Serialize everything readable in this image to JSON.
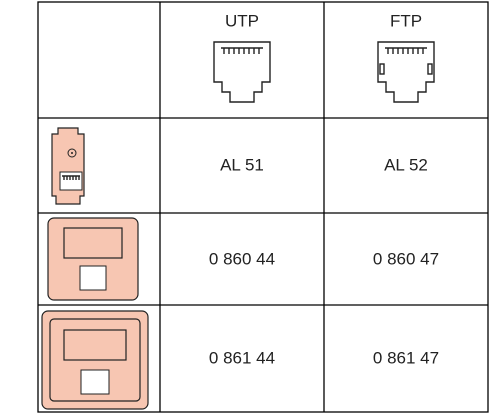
{
  "table": {
    "header": [
      "UTP",
      "FTP"
    ],
    "rows": [
      [
        "AL 51",
        "AL 52"
      ],
      [
        "0 860 44",
        "0 860 47"
      ],
      [
        "0 861 44",
        "0 861 47"
      ]
    ]
  }
}
